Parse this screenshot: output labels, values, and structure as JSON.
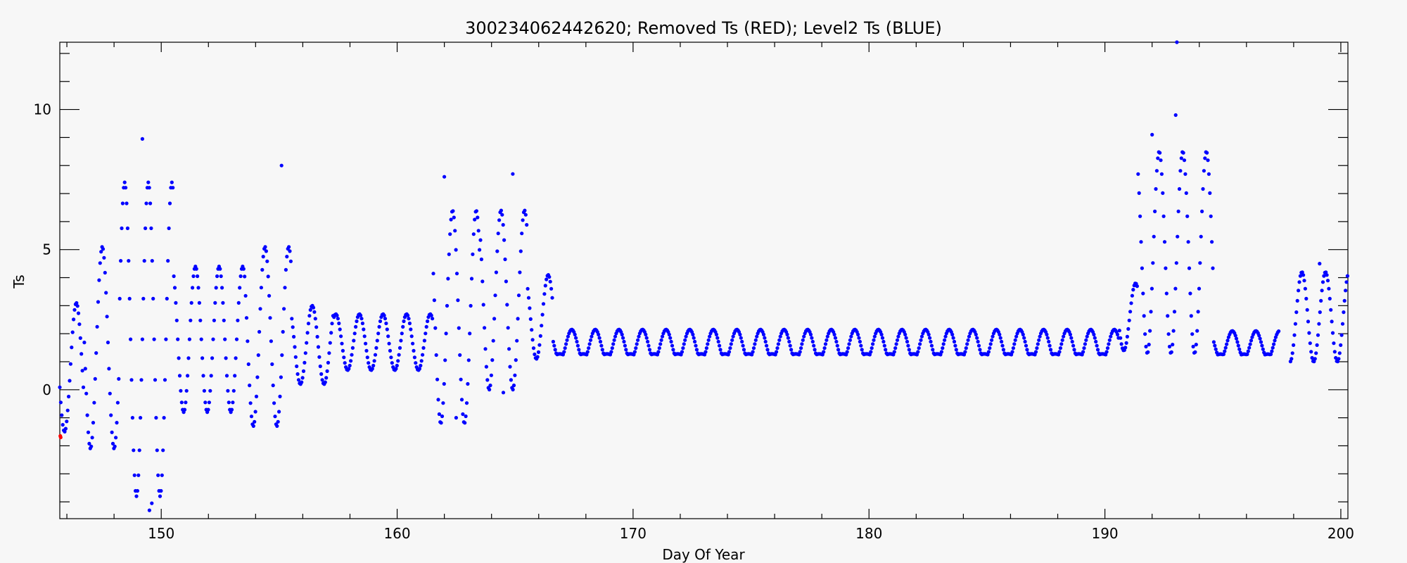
{
  "chart_data": {
    "type": "scatter",
    "title": "300234062442620; Removed Ts (RED); Level2 Ts (BLUE)",
    "xlabel": "Day Of Year",
    "ylabel": "Ts",
    "xlim": [
      145.7,
      200.3
    ],
    "ylim": [
      -4.6,
      12.4
    ],
    "x_major_ticks": [
      150,
      160,
      170,
      180,
      190,
      200
    ],
    "x_tick_labels": [
      "150",
      "160",
      "170",
      "180",
      "190",
      "200"
    ],
    "x_minor_step": 2,
    "y_major_ticks": [
      0,
      5,
      10
    ],
    "y_tick_labels": [
      "0",
      "5",
      "10"
    ],
    "y_minor_step": 1,
    "grid": false,
    "colors": {
      "removed": "#ff0000",
      "level2": "#0000ff"
    },
    "series": [
      {
        "name": "Removed Ts (RED)",
        "color": "#ff0000",
        "points": [
          [
            145.72,
            -1.65
          ],
          [
            145.74,
            -1.7
          ]
        ]
      },
      {
        "name": "Level2 Ts (BLUE)",
        "color": "#0000ff",
        "day_start": 145.7,
        "day_end": 200.3,
        "samples_per_day": 24,
        "baseline": 1.25,
        "segments": [
          {
            "from": 145.7,
            "to": 146.7,
            "mean": 0.8,
            "amp": 2.3,
            "phase": 0.1
          },
          {
            "from": 146.7,
            "to": 148.2,
            "mean": 1.5,
            "amp": 3.6,
            "phase": 0.0
          },
          {
            "from": 148.2,
            "to": 150.5,
            "mean": 1.8,
            "amp": 5.6,
            "phase": 0.05
          },
          {
            "from": 150.5,
            "to": 153.5,
            "mean": 1.8,
            "amp": 2.6,
            "phase": 0.05
          },
          {
            "from": 153.5,
            "to": 155.5,
            "mean": 1.9,
            "amp": 3.2,
            "phase": 0.1
          },
          {
            "from": 155.5,
            "to": 157.3,
            "mean": 1.6,
            "amp": 1.4,
            "phase": 0.1
          },
          {
            "from": 157.3,
            "to": 161.5,
            "mean": 1.7,
            "amp": 1.0,
            "phase": 0.1
          },
          {
            "from": 161.5,
            "to": 163.5,
            "mean": 2.6,
            "amp": 3.8,
            "phase": 0.15
          },
          {
            "from": 163.5,
            "to": 165.5,
            "mean": 3.2,
            "amp": 3.2,
            "phase": 0.1
          },
          {
            "from": 165.5,
            "to": 166.6,
            "mean": 2.6,
            "amp": 1.5,
            "phase": 0.1
          },
          {
            "from": 166.6,
            "to": 190.6,
            "mean": 1.6,
            "amp": 0.55,
            "phase": 0.1
          },
          {
            "from": 190.6,
            "to": 191.4,
            "mean": 2.6,
            "amp": 1.2,
            "phase": 0.2
          },
          {
            "from": 191.4,
            "to": 194.6,
            "mean": 4.9,
            "amp": 3.6,
            "phase": 0.2
          },
          {
            "from": 194.6,
            "to": 197.5,
            "mean": 1.6,
            "amp": 0.5,
            "phase": 0.1
          },
          {
            "from": 197.5,
            "to": 200.3,
            "mean": 2.6,
            "amp": 1.6,
            "phase": 0.15
          }
        ],
        "gaps": [
          [
            197.4,
            197.85
          ]
        ],
        "peaks": [
          [
            149.2,
            8.95
          ],
          [
            155.1,
            8.0
          ],
          [
            162.0,
            7.6
          ],
          [
            164.9,
            7.7
          ],
          [
            192.0,
            9.1
          ],
          [
            193.0,
            9.8
          ],
          [
            193.05,
            12.4
          ],
          [
            199.1,
            4.5
          ]
        ],
        "troughs": [
          [
            149.5,
            -4.3
          ],
          [
            149.6,
            -4.05
          ],
          [
            162.5,
            -1.0
          ],
          [
            164.5,
            -0.1
          ]
        ]
      }
    ]
  }
}
